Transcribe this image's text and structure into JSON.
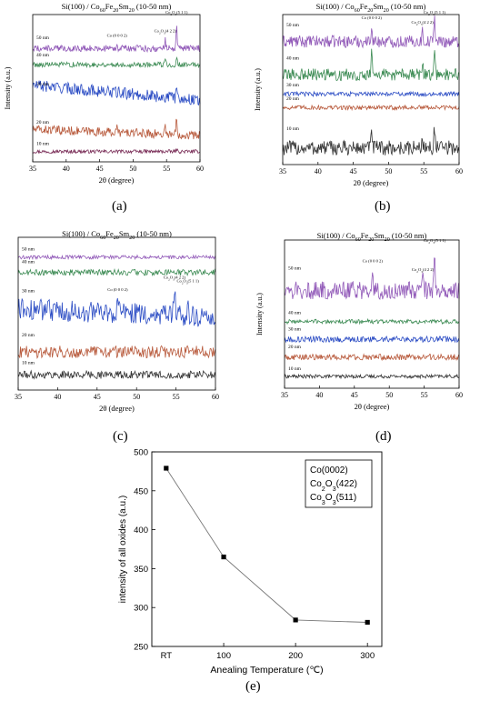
{
  "figure": {
    "panel_labels": [
      "(a)",
      "(b)",
      "(c)",
      "(d)",
      "(e)"
    ]
  },
  "chart_data": [
    {
      "type": "line",
      "panel": "(a)",
      "title_parts": [
        "Si(100) / Co",
        "60",
        "Fe",
        "20",
        "Sm",
        "20",
        " (10-50 nm)"
      ],
      "xlabel": "2θ (degree)",
      "ylabel": "Intensity (a.u.)",
      "xlim": [
        35,
        60
      ],
      "xticks": [
        35,
        40,
        45,
        50,
        55,
        60
      ],
      "series": [
        {
          "name": "10 nm",
          "color": "#7a2e58",
          "baseline": 0.07,
          "noise": 0.012,
          "peaks": [
            [
              56.5,
              0.015
            ]
          ]
        },
        {
          "name": "20 nm",
          "color": "#b85a3c",
          "baseline": 0.18,
          "noise": 0.03,
          "trend": 0.04,
          "peaks": [
            [
              47.6,
              0.03
            ],
            [
              54.8,
              0.06
            ],
            [
              56.5,
              0.12
            ]
          ]
        },
        {
          "name": "30 nm",
          "color": "#2b4cc4",
          "baseline": 0.42,
          "noise": 0.04,
          "trend": 0.1,
          "peaks": [
            [
              56.5,
              0.08
            ]
          ]
        },
        {
          "name": "40 nm",
          "color": "#3e8c55",
          "baseline": 0.66,
          "noise": 0.018,
          "peaks": [
            [
              54.8,
              0.04
            ],
            [
              56.5,
              0.05
            ]
          ]
        },
        {
          "name": "50 nm",
          "color": "#9159b8",
          "baseline": 0.77,
          "noise": 0.022,
          "peaks": [
            [
              47.6,
              0.03
            ],
            [
              54.8,
              0.06
            ],
            [
              56.5,
              0.16
            ]
          ]
        }
      ],
      "peak_labels": [
        {
          "parts": [
            "Co (0 0 0 2)"
          ],
          "x": 47.6
        },
        {
          "parts": [
            "Co",
            "2",
            "O",
            "3",
            "(4 2 2)"
          ],
          "x": 54.8
        },
        {
          "parts": [
            "Co",
            "2",
            "O",
            "3",
            "(5 1 1)"
          ],
          "x": 56.5
        }
      ]
    },
    {
      "type": "line",
      "panel": "(b)",
      "title_parts": [
        "Si(100) / Co",
        "60",
        "Fe",
        "20",
        "Sm",
        "20",
        " (10-50 nm)"
      ],
      "xlabel": "2θ (degree)",
      "ylabel": "Intensity (a.u.)",
      "xlim": [
        35,
        60
      ],
      "xticks": [
        35,
        40,
        45,
        50,
        55,
        60
      ],
      "series": [
        {
          "name": "10 nm",
          "color": "#333333",
          "baseline": 0.11,
          "noise": 0.05,
          "peaks": [
            [
              47.6,
              0.14
            ],
            [
              54.8,
              0.08
            ],
            [
              56.5,
              0.15
            ]
          ]
        },
        {
          "name": "20 nm",
          "color": "#b85a3c",
          "baseline": 0.38,
          "noise": 0.015
        },
        {
          "name": "30 nm",
          "color": "#2b4cc4",
          "baseline": 0.47,
          "noise": 0.015
        },
        {
          "name": "40 nm",
          "color": "#3e8c55",
          "baseline": 0.6,
          "noise": 0.04,
          "peaks": [
            [
              47.6,
              0.14
            ],
            [
              54.8,
              0.07
            ],
            [
              56.5,
              0.18
            ]
          ]
        },
        {
          "name": "50 nm",
          "color": "#9159b8",
          "baseline": 0.82,
          "noise": 0.04,
          "peaks": [
            [
              47.6,
              0.12
            ],
            [
              54.8,
              0.07
            ],
            [
              56.5,
              0.18
            ]
          ]
        }
      ],
      "peak_labels": [
        {
          "parts": [
            "Co (0 0 0 2)"
          ],
          "x": 47.6
        },
        {
          "parts": [
            "Co",
            "2",
            "O",
            "3",
            "(4 2 2)"
          ],
          "x": 54.8
        },
        {
          "parts": [
            "Co",
            "2",
            "O",
            "3",
            "(5 1 1)"
          ],
          "x": 56.5
        }
      ]
    },
    {
      "type": "line",
      "panel": "(c)",
      "title_parts": [
        "Si(100) / Co",
        "60",
        "Fe",
        "20",
        "Sm",
        "20",
        " (10-50 nm)"
      ],
      "xlabel": "2θ (degree)",
      "ylabel": "Intensity (a.u.)",
      "xlim": [
        35,
        60
      ],
      "xticks": [
        35,
        40,
        45,
        50,
        55,
        60
      ],
      "series": [
        {
          "name": "10 nm",
          "color": "#333333",
          "baseline": 0.1,
          "noise": 0.025
        },
        {
          "name": "20 nm",
          "color": "#b85a3c",
          "baseline": 0.25,
          "noise": 0.04,
          "peaks": [
            [
              56.5,
              0.06
            ]
          ]
        },
        {
          "name": "30 nm",
          "color": "#2b4cc4",
          "baseline": 0.48,
          "noise": 0.07,
          "trend": 0.05,
          "peaks": [
            [
              47.6,
              0.12
            ],
            [
              54.8,
              0.2
            ],
            [
              56.5,
              0.14
            ]
          ]
        },
        {
          "name": "40 nm",
          "color": "#3e8c55",
          "baseline": 0.77,
          "noise": 0.02
        },
        {
          "name": "50 nm",
          "color": "#9159b8",
          "baseline": 0.87,
          "noise": 0.012
        }
      ],
      "peak_labels": [
        {
          "parts": [
            "Co (0 0 0 2)"
          ],
          "x": 47.6
        },
        {
          "parts": [
            "Co",
            "2",
            "O",
            "3",
            "(4 2 2)"
          ],
          "x": 54.8
        },
        {
          "parts": [
            "Co",
            "2",
            "O",
            "3",
            "(5 1 1)"
          ],
          "x": 56.5
        }
      ]
    },
    {
      "type": "line",
      "panel": "(d)",
      "title_parts": [
        "Si(100) / Co",
        "60",
        "Fe",
        "20",
        "Sm",
        "20",
        " (10-50 nm)"
      ],
      "xlabel": "2θ (degree)",
      "ylabel": "Intensity (a.u.)",
      "xlim": [
        35,
        60
      ],
      "xticks": [
        35,
        40,
        45,
        50,
        55,
        60
      ],
      "series": [
        {
          "name": "10 nm",
          "color": "#333333",
          "baseline": 0.08,
          "noise": 0.012
        },
        {
          "name": "20 nm",
          "color": "#b85a3c",
          "baseline": 0.21,
          "noise": 0.02
        },
        {
          "name": "30 nm",
          "color": "#2b4cc4",
          "baseline": 0.33,
          "noise": 0.02
        },
        {
          "name": "40 nm",
          "color": "#3e8c55",
          "baseline": 0.45,
          "noise": 0.015
        },
        {
          "name": "50 nm",
          "color": "#9159b8",
          "baseline": 0.66,
          "noise": 0.06,
          "peaks": [
            [
              47.6,
              0.14
            ],
            [
              54.8,
              0.08
            ],
            [
              56.5,
              0.24
            ]
          ]
        }
      ],
      "peak_labels": [
        {
          "parts": [
            "Co (0 0 0 2)"
          ],
          "x": 47.6
        },
        {
          "parts": [
            "Co",
            "2",
            "O",
            "3",
            "(4 2 2)"
          ],
          "x": 54.8
        },
        {
          "parts": [
            "Co",
            "2",
            "O",
            "3",
            "(5 1 1)"
          ],
          "x": 56.5
        }
      ]
    },
    {
      "type": "line",
      "panel": "(e)",
      "categories": [
        "RT",
        "100",
        "200",
        "300"
      ],
      "x": [
        20,
        100,
        200,
        300
      ],
      "values": [
        479,
        365,
        284,
        281
      ],
      "xlabel": "Anealing Temperature (℃)",
      "ylabel": "intensity of all oxides (a.u.)",
      "xlim": [
        0,
        320
      ],
      "ylim": [
        250,
        500
      ],
      "xticks": [
        100,
        200,
        300
      ],
      "yticks": [
        250,
        300,
        350,
        400,
        450,
        500
      ],
      "legend_entries": [
        {
          "parts": [
            "Co(0002)"
          ]
        },
        {
          "parts": [
            "Co",
            "2",
            "O",
            "3",
            "(422)"
          ]
        },
        {
          "parts": [
            "Co",
            "3",
            "O",
            "3",
            "(511)"
          ]
        }
      ],
      "legend_placement": "top-right",
      "line_color": "#777777",
      "marker_color": "#000000"
    }
  ]
}
